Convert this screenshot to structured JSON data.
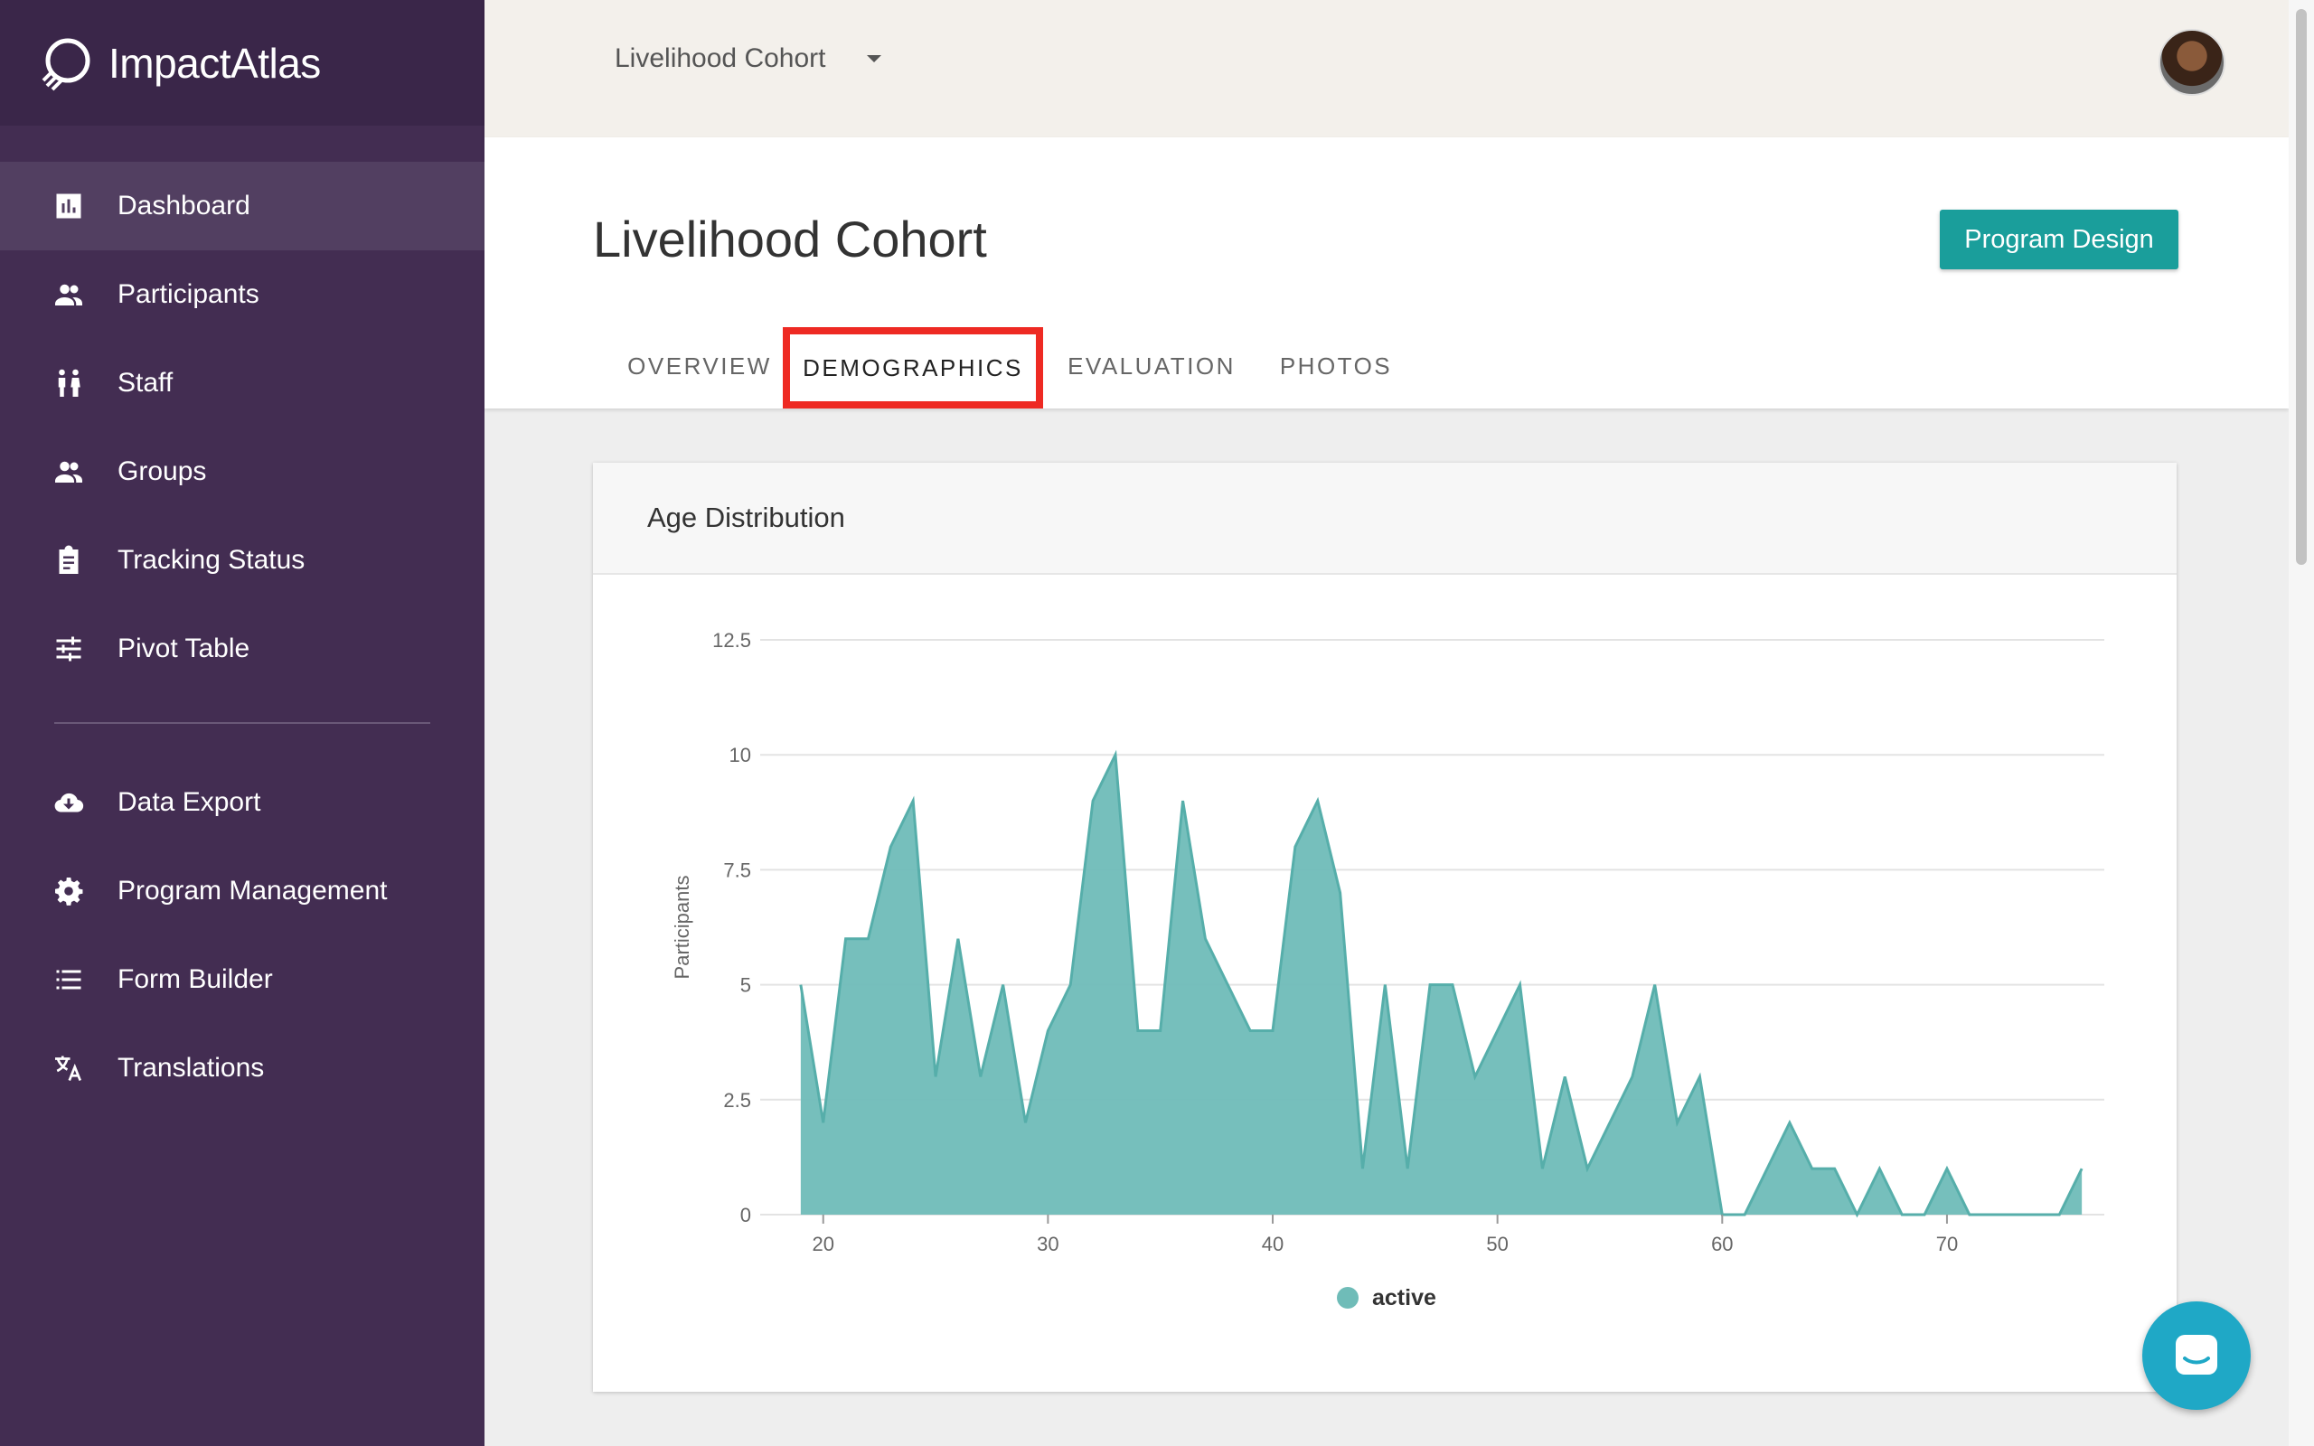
{
  "brand": {
    "name": "ImpactAtlas"
  },
  "sidebar": {
    "items": [
      {
        "label": "Dashboard",
        "icon": "bar-chart-icon",
        "active": true
      },
      {
        "label": "Participants",
        "icon": "people-icon"
      },
      {
        "label": "Staff",
        "icon": "staff-icon"
      },
      {
        "label": "Groups",
        "icon": "groups-icon"
      },
      {
        "label": "Tracking Status",
        "icon": "clipboard-icon"
      },
      {
        "label": "Pivot Table",
        "icon": "sliders-icon"
      }
    ],
    "secondary_items": [
      {
        "label": "Data Export",
        "icon": "cloud-download-icon"
      },
      {
        "label": "Program Management",
        "icon": "gear-icon"
      },
      {
        "label": "Form Builder",
        "icon": "list-icon"
      },
      {
        "label": "Translations",
        "icon": "translate-icon"
      }
    ]
  },
  "topbar": {
    "cohort": "Livelihood Cohort"
  },
  "page": {
    "title": "Livelihood Cohort",
    "program_design_label": "Program Design",
    "tabs": [
      "OVERVIEW",
      "DEMOGRAPHICS",
      "EVALUATION",
      "PHOTOS"
    ],
    "active_tab": "DEMOGRAPHICS"
  },
  "card": {
    "title": "Age Distribution"
  },
  "colors": {
    "accent": "#1a9e9b",
    "area_fill": "#6fbcb8",
    "area_line": "#56aeaa",
    "highlight": "#ee2a23",
    "sidebar": "#432d52"
  },
  "chart_data": {
    "type": "area",
    "title": "Age Distribution",
    "xlabel": "",
    "ylabel": "Participants",
    "xlim": [
      18,
      77
    ],
    "ylim": [
      0,
      12.5
    ],
    "x_ticks": [
      20,
      30,
      40,
      50,
      60,
      70
    ],
    "y_ticks": [
      0,
      2.5,
      5,
      7.5,
      10,
      12.5
    ],
    "y_tick_labels": [
      "0",
      "2.5",
      "5",
      "7.5",
      "10",
      "12.5"
    ],
    "grid": true,
    "legend": "bottom",
    "series": [
      {
        "name": "active",
        "x": [
          19,
          20,
          21,
          22,
          23,
          24,
          25,
          26,
          27,
          28,
          29,
          30,
          31,
          32,
          33,
          34,
          35,
          36,
          37,
          38,
          39,
          40,
          41,
          42,
          43,
          44,
          45,
          46,
          47,
          48,
          49,
          50,
          51,
          52,
          53,
          54,
          55,
          56,
          57,
          58,
          59,
          60,
          61,
          62,
          63,
          64,
          65,
          66,
          67,
          68,
          69,
          70,
          71,
          72,
          73,
          74,
          75,
          76
        ],
        "values": [
          5,
          2,
          6,
          6,
          8,
          9,
          3,
          6,
          3,
          5,
          2,
          4,
          5,
          9,
          10,
          4,
          4,
          9,
          6,
          5,
          4,
          4,
          8,
          9,
          7,
          1,
          5,
          1,
          5,
          5,
          3,
          4,
          5,
          1,
          3,
          1,
          2,
          3,
          5,
          2,
          3,
          0,
          0,
          1,
          2,
          1,
          1,
          0,
          1,
          0,
          0,
          1,
          0,
          0,
          0,
          0,
          0,
          1
        ]
      }
    ]
  }
}
